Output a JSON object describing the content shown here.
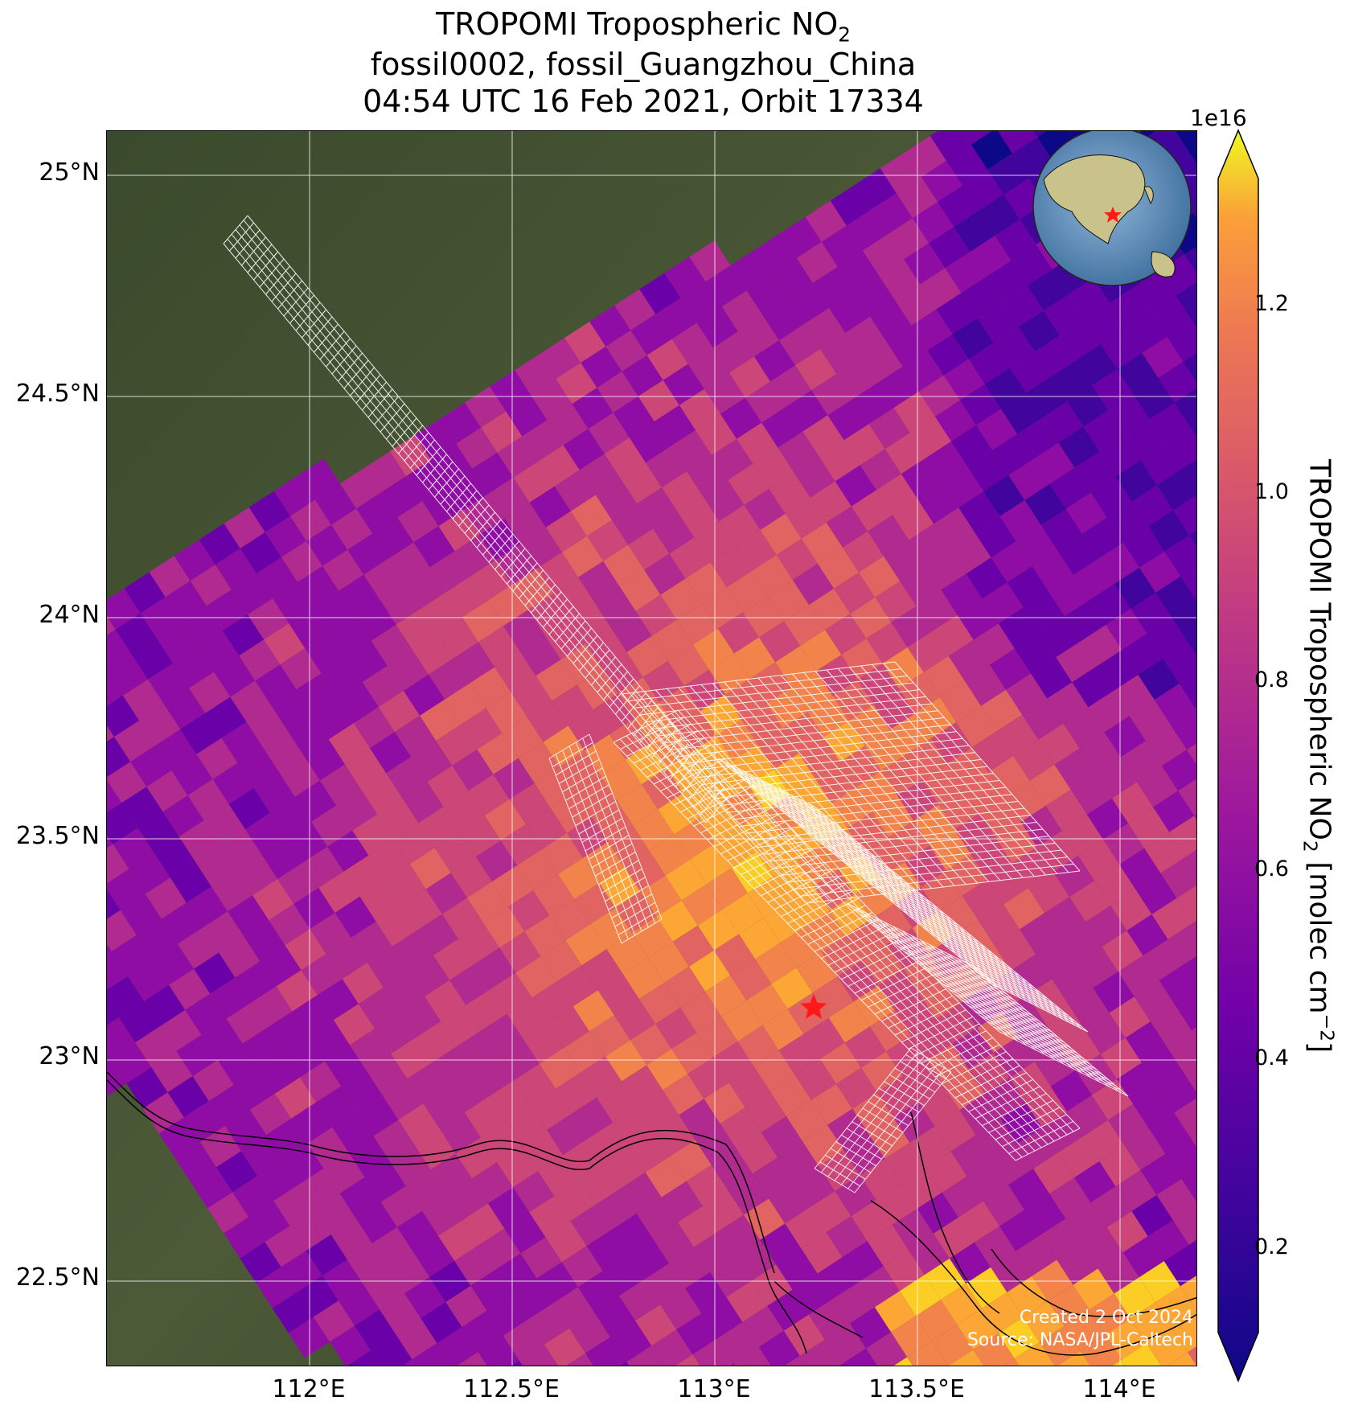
{
  "title": {
    "line1_prefix": "TROPOMI Tropospheric NO",
    "line1_sub": "2",
    "line2": "fossil0002, fossil_Guangzhou_China",
    "line3": "04:54 UTC 16 Feb 2021, Orbit 17334"
  },
  "map": {
    "lat_labels": [
      "25°N",
      "24.5°N",
      "24°N",
      "23.5°N",
      "23°N",
      "22.5°N"
    ],
    "lon_labels": [
      "112°E",
      "112.5°E",
      "113°E",
      "113.5°E",
      "114°E"
    ],
    "target_marker": "red-star",
    "credit_line1": "Created 2 Oct 2024",
    "credit_line2": "Source: NASA/JPL-Caltech",
    "inset": "globe-locator"
  },
  "colorbar": {
    "exponent": "1e16",
    "ticks": [
      "0.2",
      "0.4",
      "0.6",
      "0.8",
      "1.0",
      "1.2"
    ],
    "label_prefix": "TROPOMI Tropospheric NO",
    "label_sub": "2",
    "label_mid": " [molec cm",
    "label_sup": "−2",
    "label_suffix": "]",
    "colormap": "plasma"
  },
  "colors": {
    "background_land": "#3d4a2e",
    "star": "#ff1a1a",
    "grid": "#ffffff"
  }
}
